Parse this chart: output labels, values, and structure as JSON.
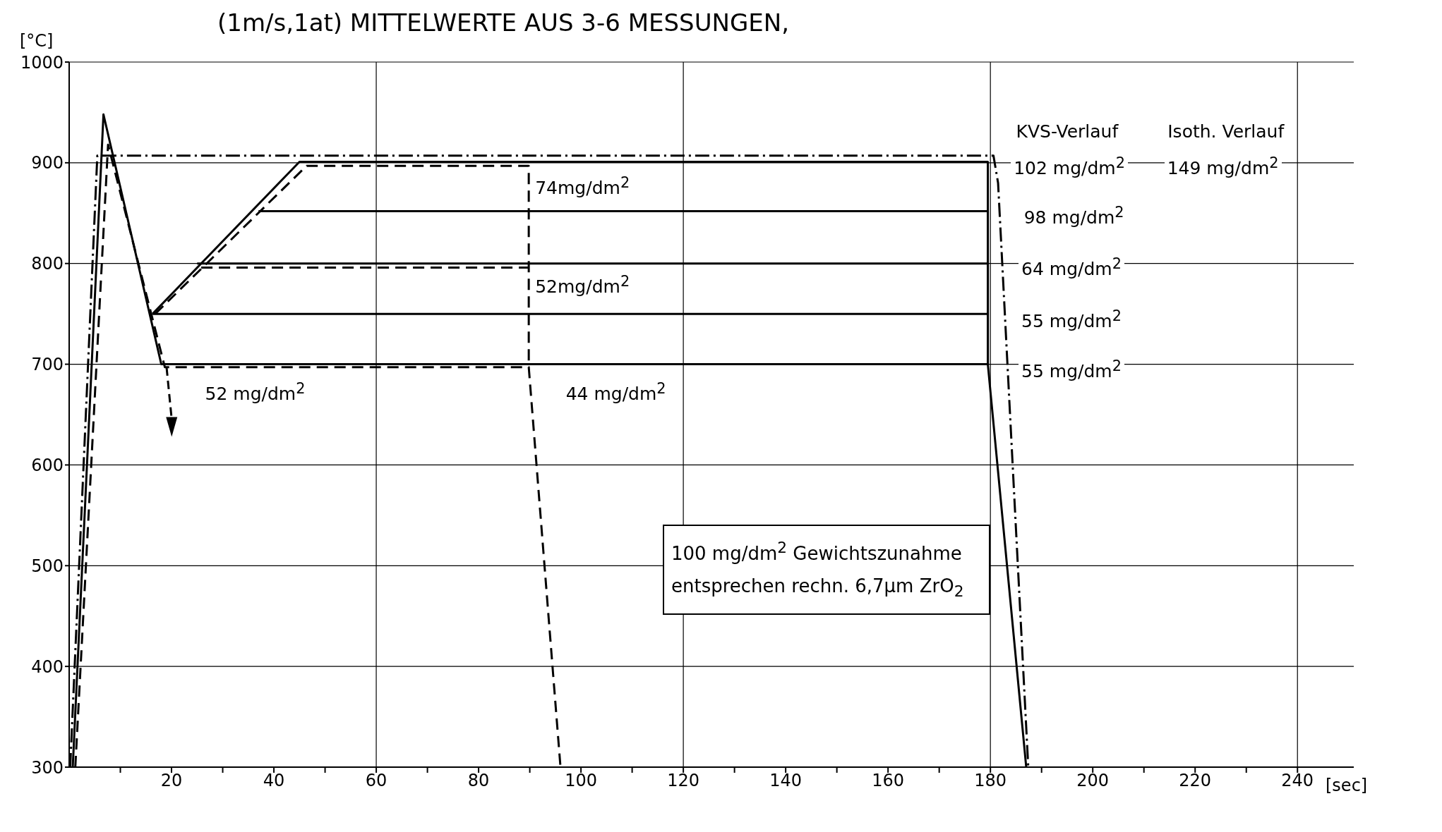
{
  "chart_data": {
    "type": "line",
    "title": "(1m/s,1at)  MITTELWERTE AUS 3-6 MESSUNGEN,",
    "xlabel": "[sec]",
    "ylabel": "[°C]",
    "xlim": [
      0,
      251
    ],
    "ylim": [
      300,
      1000
    ],
    "xticks": [
      {
        "value": 10,
        "label": null
      },
      20,
      {
        "value": 30,
        "label": null
      },
      40,
      {
        "value": 50,
        "label": null
      },
      60,
      {
        "value": 70,
        "label": null
      },
      80,
      {
        "value": 90,
        "label": null
      },
      100,
      {
        "value": 110,
        "label": null
      },
      120,
      {
        "value": 130,
        "label": null
      },
      140,
      {
        "value": 150,
        "label": null
      },
      160,
      {
        "value": 170,
        "label": null
      },
      180,
      {
        "value": 190,
        "label": null
      },
      200,
      {
        "value": 210,
        "label": null
      },
      220,
      {
        "value": 230,
        "label": null
      },
      240
    ],
    "yticks": [
      300,
      400,
      500,
      600,
      700,
      800,
      900,
      1000
    ],
    "grid": "y",
    "marker": "none",
    "ref_lines": [
      {
        "axis": "x",
        "value": 60,
        "color": "#000000"
      },
      {
        "axis": "x",
        "value": 120,
        "color": "#000000"
      },
      {
        "axis": "x",
        "value": 180,
        "color": "#000000"
      },
      {
        "axis": "x",
        "value": 240,
        "color": "#000000"
      }
    ],
    "series": [
      {
        "color": "#000000",
        "line_style": "solid",
        "x": [
          0.7,
          6.7,
          18,
          179.5,
          187
        ],
        "values": [
          300,
          948,
          700,
          700,
          300
        ]
      },
      {
        "color": "#000000",
        "line_style": "solid",
        "x": [
          16.3,
          179.5
        ],
        "values": [
          750,
          750
        ]
      },
      {
        "color": "#000000",
        "line_style": "solid",
        "x": [
          25,
          179.5,
          179.5
        ],
        "values": [
          800,
          800,
          700
        ]
      },
      {
        "color": "#000000",
        "line_style": "solid",
        "x": [
          37,
          179.5,
          179.5
        ],
        "values": [
          852,
          852,
          700
        ]
      },
      {
        "color": "#000000",
        "line_style": "solid",
        "x": [
          16.3,
          45,
          179.5,
          179.5
        ],
        "values": [
          750,
          901,
          901,
          700
        ]
      },
      {
        "color": "#000000",
        "line_style": "dashdot",
        "x": [
          0.2,
          5.5,
          180.6,
          181.5,
          187.4
        ],
        "values": [
          300,
          907,
          907,
          880,
          300
        ]
      },
      {
        "color": "#000000",
        "line_style": "dashed",
        "x": [
          1.2,
          7.6,
          18.7,
          89.8,
          96
        ],
        "values": [
          300,
          918,
          697,
          697,
          300
        ]
      },
      {
        "color": "#000000",
        "line_style": "dashed",
        "x": [
          16.8,
          46.4,
          89.8,
          89.8
        ],
        "values": [
          750,
          897,
          897,
          697
        ]
      },
      {
        "color": "#000000",
        "line_style": "dashed",
        "x": [
          25.8,
          89.8
        ],
        "values": [
          796,
          796
        ]
      }
    ],
    "annotations": [
      "KVS-Verlauf",
      "Isoth. Verlauf",
      "100 mg/dm$^{2}$ Gewichtszunahme\nentsprechen rechn. 6,7µm ZrO$_{2}$",
      "74mg/dm$^{2}$",
      "52mg/dm$^{2}$",
      "44 mg/dm$^{2}$",
      "52 mg/dm$^{2}$",
      "102 mg/dm$^{2}$",
      "149 mg/dm$^{2}$",
      "98 mg/dm$^{2}$",
      "64 mg/dm$^{2}$",
      "55 mg/dm$^{2}$",
      "55 mg/dm$^{2}$"
    ]
  }
}
